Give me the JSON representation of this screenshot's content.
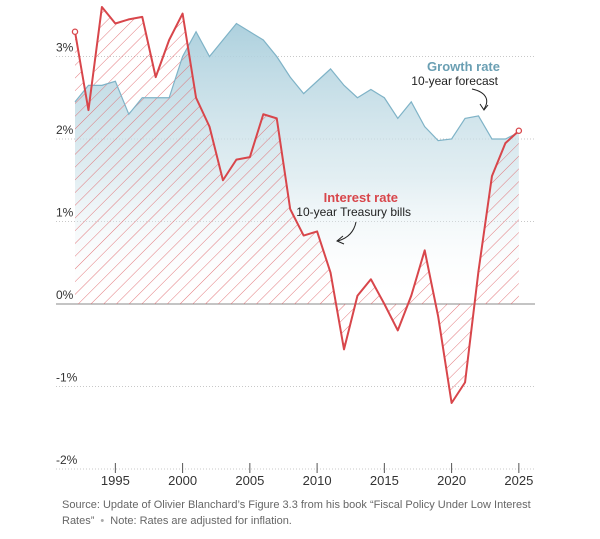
{
  "chart_data": {
    "type": "line",
    "x": [
      1992,
      1993,
      1994,
      1995,
      1996,
      1997,
      1998,
      1999,
      2000,
      2001,
      2002,
      2003,
      2004,
      2005,
      2006,
      2007,
      2008,
      2009,
      2010,
      2011,
      2012,
      2013,
      2014,
      2015,
      2016,
      2017,
      2018,
      2019,
      2020,
      2021,
      2022,
      2023,
      2024,
      2025
    ],
    "series": [
      {
        "name": "Growth rate",
        "annotation": {
          "title": "Growth rate",
          "subtitle": "10-year forecast"
        },
        "color": "#7fb3c7",
        "x": [
          1992,
          1993,
          1994,
          1995,
          1996,
          1997,
          1998,
          1999,
          2000,
          2001,
          2002,
          2003,
          2004,
          2005,
          2006,
          2007,
          2008,
          2009,
          2010,
          2011,
          2012,
          2013,
          2014,
          2015,
          2016,
          2017,
          2018,
          2019,
          2020,
          2021,
          2022,
          2023,
          2024,
          2025
        ],
        "values": [
          2.45,
          2.65,
          2.65,
          2.7,
          2.3,
          2.5,
          2.5,
          2.5,
          3.0,
          3.3,
          3.0,
          3.2,
          3.4,
          3.3,
          3.2,
          3.0,
          2.75,
          2.55,
          2.7,
          2.85,
          2.65,
          2.5,
          2.6,
          2.5,
          2.25,
          2.45,
          2.15,
          1.98,
          2.0,
          2.25,
          2.28,
          2.0,
          2.0,
          2.08
        ]
      },
      {
        "name": "Interest rate",
        "annotation": {
          "title": "Interest rate",
          "subtitle": "10-year Treasury bills"
        },
        "color": "#d8464b",
        "x": [
          1992,
          1993,
          1994,
          1995,
          1996,
          1997,
          1998,
          1999,
          2000,
          2001,
          2002,
          2003,
          2004,
          2005,
          2006,
          2007,
          2008,
          2009,
          2010,
          2011,
          2012,
          2013,
          2014,
          2015,
          2016,
          2017,
          2018,
          2019,
          2020,
          2021,
          2022,
          2023,
          2024,
          2025
        ],
        "values": [
          3.3,
          2.35,
          3.6,
          3.4,
          3.45,
          3.48,
          2.75,
          3.2,
          3.52,
          2.5,
          2.15,
          1.5,
          1.75,
          1.78,
          2.3,
          2.25,
          1.15,
          0.83,
          0.88,
          0.38,
          -0.55,
          0.1,
          0.3,
          0.0,
          -0.32,
          0.1,
          0.65,
          -0.15,
          -1.2,
          -0.95,
          0.4,
          1.55,
          1.95,
          2.1
        ]
      }
    ],
    "xlim": [
      1991.5,
      2025.5
    ],
    "ylim": [
      -2,
      3.6
    ],
    "xticks": [
      1995,
      2000,
      2005,
      2010,
      2015,
      2020,
      2025
    ],
    "yticks": [
      -2,
      -1,
      0,
      1,
      2,
      3
    ],
    "ytick_labels": [
      "-2%",
      "-1%",
      "0%",
      "1%",
      "2%",
      "3%"
    ],
    "xlabel": "",
    "ylabel": "",
    "title": ""
  },
  "footer": {
    "source": "Source: Update of Olivier Blanchard’s Figure 3.3 from his book “Fiscal Policy Under Low Interest Rates”",
    "separator": "•",
    "note": "Note: Rates are adjusted for inflation."
  }
}
